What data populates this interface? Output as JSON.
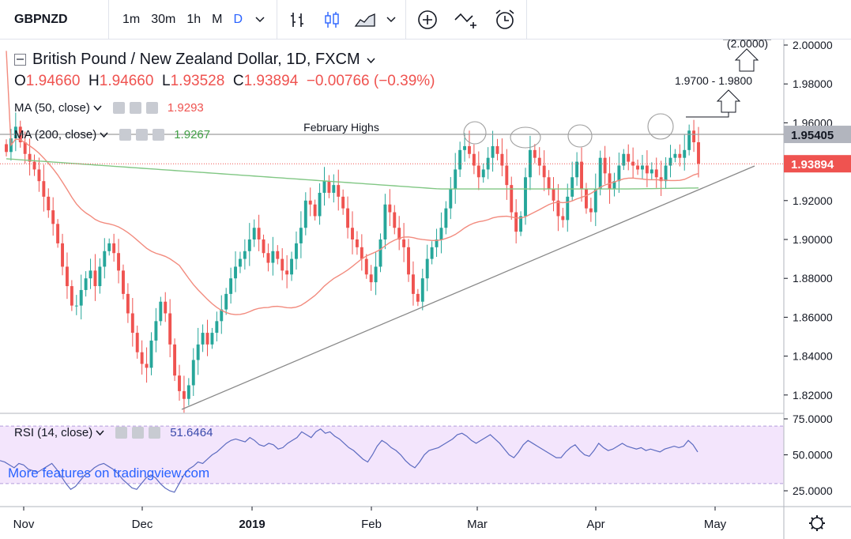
{
  "toolbar": {
    "symbol": "GBPNZD",
    "intervals": [
      "1m",
      "30m",
      "1h",
      "M",
      "D"
    ],
    "active_interval": "D"
  },
  "legend": {
    "title": "British Pound / New Zealand Dollar, 1D, FXCM",
    "o_label": "O",
    "o": "1.94660",
    "h_label": "H",
    "h": "1.94660",
    "l_label": "L",
    "l": "1.93528",
    "c_label": "C",
    "c": "1.93894",
    "change": "−0.00766 (−0.39%)"
  },
  "indicators": {
    "ma50_label": "MA (50, close)",
    "ma50_value": "1.9293",
    "ma200_label": "MA (200, close)",
    "ma200_value": "1.9267",
    "rsi_label": "RSI (14, close)",
    "rsi_value": "51.6464"
  },
  "annotations": {
    "february_highs": "February Highs",
    "target_range": "1.9700 - 1.9800",
    "target_top": "(2.0000)"
  },
  "watermark": "More features on tradingview.com",
  "colors": {
    "up": "#26a69a",
    "down": "#ef5350",
    "ma50": "#f28b7e",
    "ma200": "#81c784",
    "rsi": "#5c6bc0",
    "rsi_band": "#f3e5fc",
    "accent": "#2962ff"
  },
  "chart_data": {
    "type": "candlestick",
    "title": "British Pound / New Zealand Dollar, 1D, FXCM",
    "price_axis": {
      "ticks": [
        "2.00000",
        "1.98000",
        "1.96000",
        "1.94000",
        "1.92000",
        "1.90000",
        "1.88000",
        "1.86000",
        "1.84000",
        "1.82000"
      ],
      "ylim": [
        1.8125,
        2.0035
      ]
    },
    "time_axis": {
      "ticks": [
        "Nov",
        "Dec",
        "2019",
        "Feb",
        "Mar",
        "Apr",
        "May"
      ]
    },
    "price_labels": [
      {
        "value": 1.95405,
        "text": "1.95405",
        "kind": "resistance"
      },
      {
        "value": 1.93894,
        "text": "1.93894",
        "kind": "last"
      }
    ],
    "resistance_level": 1.95405,
    "last_price": 1.93894,
    "close_series": [
      1.945,
      1.952,
      1.958,
      1.95,
      1.944,
      1.94,
      1.936,
      1.93,
      1.922,
      1.915,
      1.908,
      1.898,
      1.886,
      1.876,
      1.866,
      1.866,
      1.874,
      1.88,
      1.884,
      1.876,
      1.886,
      1.894,
      1.898,
      1.893,
      1.884,
      1.872,
      1.862,
      1.852,
      1.842,
      1.836,
      1.834,
      1.848,
      1.858,
      1.868,
      1.862,
      1.846,
      1.83,
      1.822,
      1.818,
      1.825,
      1.838,
      1.846,
      1.852,
      1.846,
      1.852,
      1.858,
      1.864,
      1.872,
      1.88,
      1.886,
      1.89,
      1.894,
      1.9,
      1.906,
      1.9,
      1.893,
      1.888,
      1.894,
      1.89,
      1.884,
      1.882,
      1.89,
      1.898,
      1.906,
      1.92,
      1.918,
      1.912,
      1.924,
      1.93,
      1.924,
      1.928,
      1.922,
      1.916,
      1.906,
      1.9,
      1.896,
      1.89,
      1.882,
      1.878,
      1.886,
      1.9,
      1.918,
      1.914,
      1.906,
      1.9,
      1.896,
      1.882,
      1.872,
      1.868,
      1.88,
      1.89,
      1.896,
      1.9,
      1.906,
      1.916,
      1.926,
      1.936,
      1.946,
      1.948,
      1.944,
      1.938,
      1.932,
      1.936,
      1.942,
      1.948,
      1.944,
      1.938,
      1.928,
      1.914,
      1.904,
      1.912,
      1.932,
      1.946,
      1.942,
      1.938,
      1.932,
      1.926,
      1.92,
      1.912,
      1.91,
      1.922,
      1.932,
      1.94,
      1.926,
      1.916,
      1.914,
      1.926,
      1.942,
      1.934,
      1.926,
      1.93,
      1.938,
      1.944,
      1.94,
      1.938,
      1.936,
      1.938,
      1.934,
      1.936,
      1.932,
      1.93,
      1.938,
      1.942,
      1.944,
      1.942,
      1.946,
      1.956,
      1.95,
      1.939
    ],
    "ma50": {
      "name": "MA (50, close)",
      "last": 1.9293
    },
    "ma200": {
      "name": "MA (200, close)",
      "last": 1.9267
    },
    "trendline": {
      "from": {
        "date": "Dec",
        "price": 1.815
      },
      "to": {
        "date": "late Apr",
        "price": 1.938
      }
    },
    "rsi": {
      "name": "RSI (14, close)",
      "last": 51.6464,
      "axis_ticks": [
        "75.0000",
        "50.0000",
        "25.0000"
      ],
      "band": [
        30,
        70
      ],
      "values": [
        46,
        45,
        43,
        41,
        44,
        43,
        40,
        39,
        38,
        40,
        42,
        44,
        40,
        35,
        30,
        26,
        28,
        32,
        36,
        38,
        41,
        43,
        44,
        42,
        40,
        37,
        33,
        30,
        27,
        26,
        30,
        34,
        36,
        34,
        30,
        27,
        25,
        24,
        30,
        36,
        40,
        42,
        45,
        44,
        47,
        50,
        52,
        55,
        58,
        60,
        61,
        60,
        59,
        62,
        60,
        57,
        56,
        58,
        57,
        54,
        55,
        58,
        60,
        62,
        66,
        64,
        62,
        66,
        68,
        65,
        66,
        63,
        61,
        58,
        55,
        53,
        50,
        47,
        45,
        50,
        56,
        60,
        58,
        55,
        53,
        50,
        46,
        43,
        41,
        45,
        50,
        53,
        54,
        55,
        57,
        59,
        61,
        64,
        65,
        63,
        60,
        58,
        60,
        62,
        64,
        61,
        58,
        54,
        50,
        48,
        52,
        57,
        60,
        58,
        56,
        54,
        52,
        50,
        48,
        48,
        52,
        55,
        57,
        53,
        50,
        49,
        53,
        58,
        55,
        53,
        54,
        56,
        58,
        56,
        55,
        54,
        55,
        53,
        54,
        53,
        52,
        54,
        55,
        56,
        55,
        56,
        60,
        57,
        52
      ]
    }
  }
}
